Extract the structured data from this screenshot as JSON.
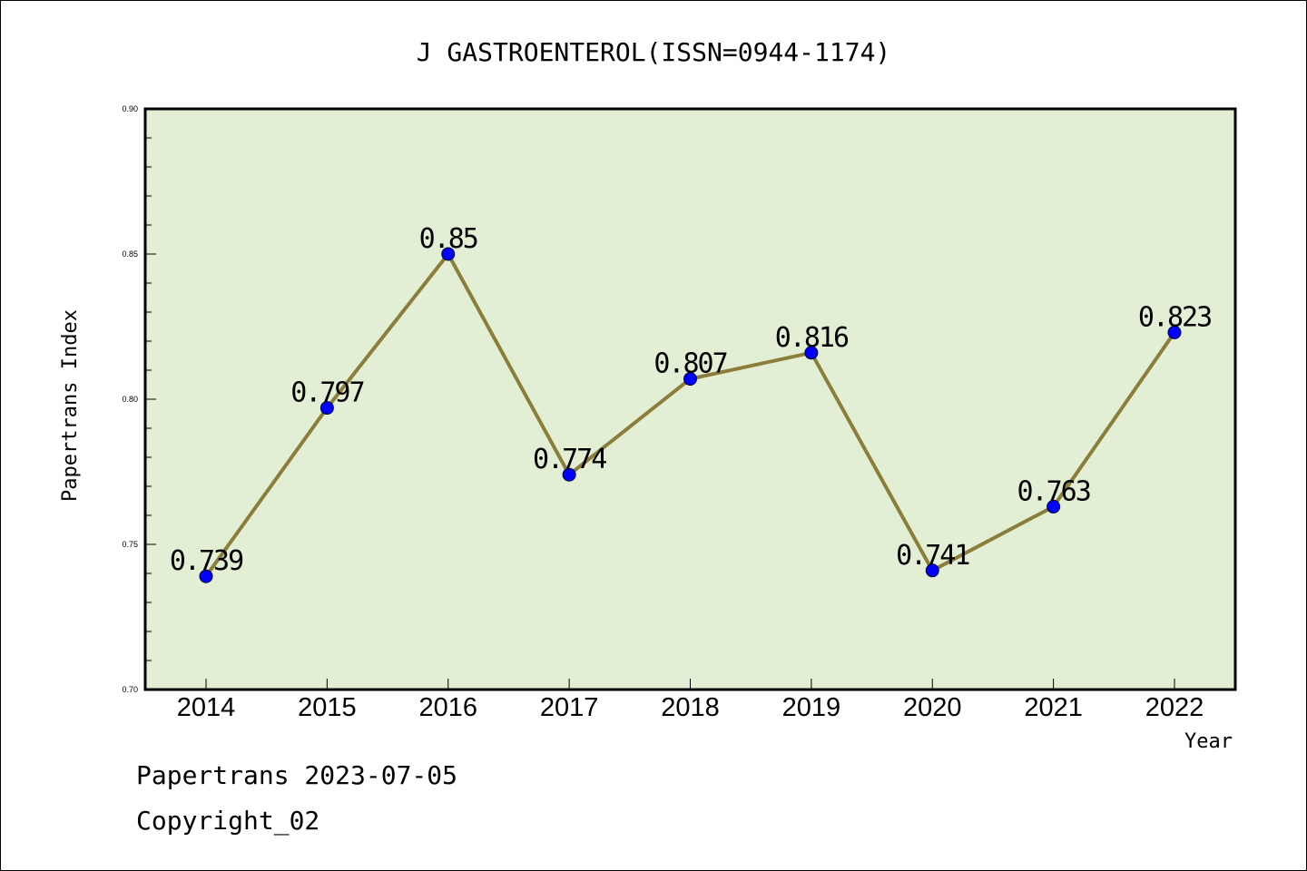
{
  "chart_data": {
    "type": "line",
    "title": "J GASTROENTEROL(ISSN=0944-1174)",
    "xlabel": "Year",
    "ylabel": "Papertrans Index",
    "categories": [
      "2014",
      "2015",
      "2016",
      "2017",
      "2018",
      "2019",
      "2020",
      "2021",
      "2022"
    ],
    "values": [
      0.739,
      0.797,
      0.85,
      0.774,
      0.807,
      0.816,
      0.741,
      0.763,
      0.823
    ],
    "data_labels": [
      "0.739",
      "0.797",
      "0.85",
      "0.774",
      "0.807",
      "0.816",
      "0.741",
      "0.763",
      "0.823"
    ],
    "ylim": [
      0.7,
      0.9
    ],
    "yticks": [
      "0.70",
      "0.75",
      "0.80",
      "0.85",
      "0.90"
    ],
    "grid": false,
    "colors": {
      "plot_background": "#e2efd5",
      "line": "#8b7d3a",
      "marker": "#0000ff"
    }
  },
  "footer": {
    "line1": "Papertrans 2023-07-05",
    "line2": "Copyright_02"
  }
}
